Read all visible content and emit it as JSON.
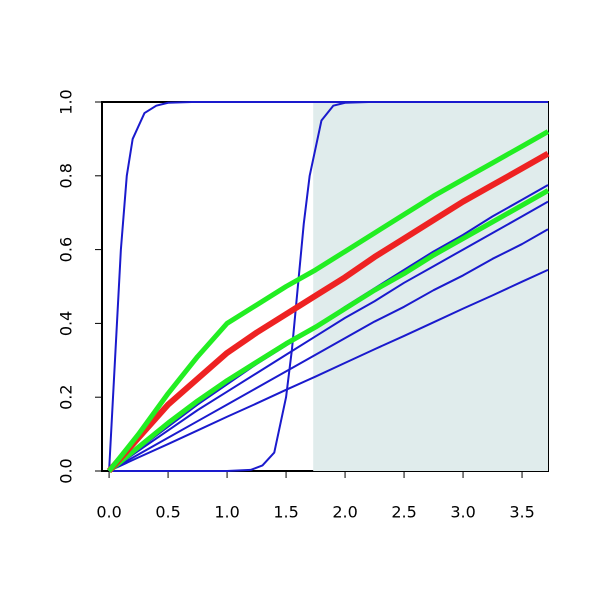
{
  "chart_data": {
    "type": "line",
    "xlim": [
      -0.06,
      3.72
    ],
    "ylim": [
      0,
      1
    ],
    "xticks": [
      {
        "value": 0,
        "label": "0.0"
      },
      0.5,
      {
        "value": 1,
        "label": "1.0"
      },
      1.5,
      {
        "value": 2,
        "label": "2.0"
      },
      2.5,
      {
        "value": 3,
        "label": "3.0"
      },
      3.5
    ],
    "yticks": [
      {
        "value": 0,
        "label": "0.0"
      },
      0.2,
      0.4,
      0.6,
      0.8,
      {
        "value": 1,
        "label": "1.0"
      }
    ],
    "shade": {
      "from": 1.73,
      "color": "#e0ecec"
    },
    "series": [
      {
        "color": "#1a1acd",
        "width": 2,
        "x": [
          0,
          0.05,
          0.1,
          0.15,
          0.2,
          0.3,
          0.4,
          0.5,
          0.7,
          1.73,
          3.72
        ],
        "values": [
          0,
          0.3,
          0.6,
          0.8,
          0.9,
          0.97,
          0.99,
          0.998,
          1,
          1,
          1
        ]
      },
      {
        "color": "#1a1acd",
        "width": 2,
        "x": [
          0,
          1.0,
          1.2,
          1.3,
          1.4,
          1.5,
          1.55,
          1.6,
          1.65,
          1.7,
          1.8,
          1.9,
          2.0,
          2.2,
          3.72
        ],
        "values": [
          0,
          0,
          0.003,
          0.015,
          0.05,
          0.2,
          0.33,
          0.5,
          0.67,
          0.8,
          0.95,
          0.99,
          0.998,
          1,
          1
        ]
      },
      {
        "color": "#1a1acd",
        "width": 2,
        "x": [
          0,
          0.25,
          0.5,
          0.75,
          1,
          1.25,
          1.5,
          1.75,
          2,
          2.25,
          2.5,
          2.75,
          3,
          3.25,
          3.5,
          3.72
        ],
        "values": [
          0,
          0.037,
          0.073,
          0.11,
          0.147,
          0.183,
          0.22,
          0.256,
          0.293,
          0.33,
          0.366,
          0.403,
          0.44,
          0.476,
          0.513,
          0.545
        ]
      },
      {
        "color": "#1a1acd",
        "width": 2,
        "x": [
          0,
          0.25,
          0.5,
          0.75,
          1,
          1.25,
          1.5,
          1.75,
          2,
          2.25,
          2.5,
          2.75,
          3,
          3.25,
          3.5,
          3.72
        ],
        "values": [
          0,
          0.045,
          0.09,
          0.135,
          0.18,
          0.225,
          0.27,
          0.315,
          0.36,
          0.405,
          0.445,
          0.49,
          0.53,
          0.575,
          0.615,
          0.655
        ]
      },
      {
        "color": "#1a1acd",
        "width": 2,
        "x": [
          0,
          0.25,
          0.5,
          0.75,
          1,
          1.25,
          1.5,
          1.75,
          2,
          2.25,
          2.5,
          2.75,
          3,
          3.25,
          3.5,
          3.72
        ],
        "values": [
          0,
          0.055,
          0.11,
          0.165,
          0.215,
          0.265,
          0.315,
          0.365,
          0.415,
          0.46,
          0.51,
          0.555,
          0.6,
          0.645,
          0.69,
          0.73
        ]
      },
      {
        "color": "#1a1acd",
        "width": 2,
        "x": [
          0,
          0.25,
          0.5,
          0.75,
          1,
          1.25,
          1.5,
          1.75,
          2,
          2.25,
          2.5,
          2.75,
          3,
          3.25,
          3.5,
          3.72
        ],
        "values": [
          0,
          0.06,
          0.12,
          0.18,
          0.235,
          0.29,
          0.34,
          0.39,
          0.445,
          0.495,
          0.545,
          0.595,
          0.64,
          0.69,
          0.735,
          0.775
        ]
      },
      {
        "color": "#22ee22",
        "width": 5,
        "x": [
          0,
          0.25,
          0.5,
          0.75,
          1,
          1.25,
          1.5,
          1.75,
          2,
          2.25,
          2.5,
          2.75,
          3,
          3.25,
          3.5,
          3.72
        ],
        "values": [
          0,
          0.065,
          0.13,
          0.19,
          0.245,
          0.295,
          0.345,
          0.39,
          0.44,
          0.49,
          0.535,
          0.585,
          0.63,
          0.675,
          0.72,
          0.76
        ]
      },
      {
        "color": "#ee2222",
        "width": 6,
        "x": [
          0,
          0.25,
          0.5,
          0.75,
          1,
          1.25,
          1.5,
          1.75,
          2,
          2.25,
          2.5,
          2.75,
          3,
          3.25,
          3.5,
          3.72
        ],
        "values": [
          0,
          0.09,
          0.18,
          0.25,
          0.32,
          0.375,
          0.425,
          0.475,
          0.525,
          0.58,
          0.63,
          0.68,
          0.73,
          0.775,
          0.82,
          0.86
        ]
      },
      {
        "color": "#22ee22",
        "width": 5,
        "x": [
          0,
          0.25,
          0.5,
          0.75,
          1,
          1.25,
          1.5,
          1.75,
          2,
          2.25,
          2.5,
          2.75,
          3,
          3.25,
          3.5,
          3.72
        ],
        "values": [
          0,
          0.1,
          0.21,
          0.31,
          0.4,
          0.45,
          0.5,
          0.545,
          0.595,
          0.645,
          0.695,
          0.745,
          0.79,
          0.835,
          0.88,
          0.92
        ]
      }
    ]
  }
}
